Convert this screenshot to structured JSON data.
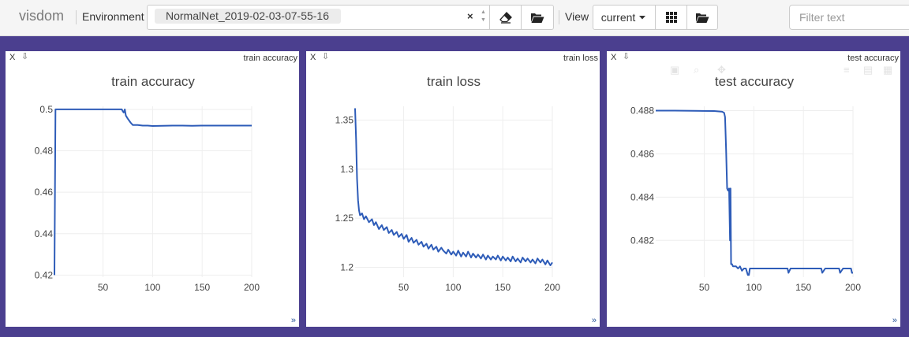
{
  "app": {
    "brand": "visdom"
  },
  "toolbar": {
    "environment_label": "Environment",
    "environment_value": "NormalNet_2019-02-03-07-55-16",
    "clear_glyph": "×",
    "view_label": "View",
    "view_value": "current",
    "filter_placeholder": "Filter text",
    "icons": [
      "eraser-icon",
      "folder-open-icon",
      "grid-icon",
      "folder-open-icon",
      "caret-down-icon"
    ]
  },
  "colors": {
    "background": "#4b3f8f",
    "line": "#2e5cb8",
    "grid": "#eeeeee"
  },
  "panes": [
    {
      "close": "X",
      "download": "⇩",
      "name": "train accuracy",
      "resize": "»"
    },
    {
      "close": "X",
      "download": "⇩",
      "name": "train loss",
      "resize": "»"
    },
    {
      "close": "X",
      "download": "⇩",
      "name": "test accuracy",
      "resize": "»"
    }
  ],
  "chart_data": [
    {
      "type": "line",
      "title": "train accuracy",
      "xlabel": "",
      "ylabel": "",
      "xlim": [
        1,
        200
      ],
      "ylim": [
        0.419,
        0.5015
      ],
      "xticks": [
        50,
        100,
        150,
        200
      ],
      "yticks": [
        0.42,
        0.44,
        0.46,
        0.48,
        0.5
      ],
      "ytick_labels": [
        "0.42",
        "0.44",
        "0.46",
        "0.48",
        "0.5"
      ],
      "grid": true,
      "series": [
        {
          "x": [
            1,
            2,
            3,
            10,
            40,
            60,
            69,
            70,
            71,
            72,
            73,
            75,
            78,
            80,
            85,
            90,
            95,
            100,
            110,
            120,
            130,
            140,
            150,
            160,
            170,
            180,
            190,
            200
          ],
          "y": [
            0.42,
            0.5,
            0.5,
            0.5,
            0.5,
            0.5,
            0.5,
            0.499,
            0.4985,
            0.5,
            0.497,
            0.4955,
            0.4935,
            0.4925,
            0.4925,
            0.4922,
            0.4922,
            0.492,
            0.4921,
            0.4922,
            0.4922,
            0.4921,
            0.4922,
            0.4922,
            0.4922,
            0.4922,
            0.4922,
            0.4922
          ]
        }
      ]
    },
    {
      "type": "line",
      "title": "train loss",
      "xlabel": "",
      "ylabel": "",
      "xlim": [
        1,
        200
      ],
      "ylim": [
        1.19,
        1.364
      ],
      "xticks": [
        50,
        100,
        150,
        200
      ],
      "yticks": [
        1.2,
        1.25,
        1.3,
        1.35
      ],
      "ytick_labels": [
        "1.2",
        "1.25",
        "1.3",
        "1.35"
      ],
      "grid": true,
      "series": [
        {
          "x": [
            1,
            2,
            3,
            4,
            5,
            6,
            8,
            10,
            12,
            15,
            18,
            20,
            22,
            25,
            28,
            30,
            33,
            35,
            38,
            40,
            43,
            45,
            48,
            50,
            53,
            55,
            58,
            60,
            63,
            65,
            68,
            70,
            73,
            75,
            78,
            80,
            83,
            85,
            88,
            90,
            93,
            95,
            98,
            100,
            103,
            105,
            108,
            110,
            113,
            115,
            118,
            120,
            123,
            125,
            128,
            130,
            133,
            135,
            138,
            140,
            143,
            145,
            148,
            150,
            153,
            155,
            158,
            160,
            163,
            165,
            168,
            170,
            173,
            175,
            178,
            180,
            183,
            185,
            188,
            190,
            193,
            195,
            198,
            200
          ],
          "y": [
            1.362,
            1.33,
            1.29,
            1.268,
            1.258,
            1.253,
            1.255,
            1.249,
            1.252,
            1.246,
            1.249,
            1.243,
            1.246,
            1.239,
            1.243,
            1.238,
            1.241,
            1.235,
            1.238,
            1.233,
            1.236,
            1.231,
            1.234,
            1.229,
            1.233,
            1.226,
            1.23,
            1.225,
            1.228,
            1.223,
            1.226,
            1.221,
            1.224,
            1.219,
            1.223,
            1.218,
            1.221,
            1.216,
            1.22,
            1.217,
            1.214,
            1.218,
            1.213,
            1.216,
            1.212,
            1.217,
            1.211,
            1.215,
            1.211,
            1.216,
            1.21,
            1.214,
            1.21,
            1.213,
            1.209,
            1.213,
            1.208,
            1.212,
            1.208,
            1.211,
            1.208,
            1.212,
            1.207,
            1.211,
            1.207,
            1.21,
            1.206,
            1.211,
            1.206,
            1.209,
            1.205,
            1.21,
            1.206,
            1.209,
            1.205,
            1.208,
            1.204,
            1.209,
            1.205,
            1.208,
            1.203,
            1.207,
            1.202,
            1.205
          ]
        }
      ]
    },
    {
      "type": "line",
      "title": "test accuracy",
      "xlabel": "",
      "ylabel": "",
      "xlim": [
        1,
        200
      ],
      "ylim": [
        0.4803,
        0.4882
      ],
      "xticks": [
        50,
        100,
        150,
        200
      ],
      "yticks": [
        0.482,
        0.484,
        0.486,
        0.488
      ],
      "ytick_labels": [
        "0.482",
        "0.484",
        "0.486",
        "0.488"
      ],
      "grid": true,
      "series": [
        {
          "x": [
            1,
            20,
            40,
            60,
            68,
            70,
            71,
            72,
            73,
            74,
            75,
            76,
            76.5,
            77,
            78,
            79,
            80,
            82,
            84,
            86,
            88,
            90,
            92,
            94,
            95,
            96,
            97,
            100,
            105,
            110,
            120,
            130,
            134,
            135,
            137,
            140,
            150,
            160,
            168,
            169,
            172,
            175,
            180,
            186,
            187,
            190,
            195,
            198,
            199,
            200
          ],
          "y": [
            0.488,
            0.488,
            0.48799,
            0.48798,
            0.48795,
            0.4879,
            0.4877,
            0.4862,
            0.4844,
            0.4843,
            0.4844,
            0.482,
            0.4844,
            0.4809,
            0.4809,
            0.4808,
            0.4808,
            0.4808,
            0.4807,
            0.4808,
            0.4806,
            0.4807,
            0.4807,
            0.4804,
            0.4804,
            0.4807,
            0.4807,
            0.4807,
            0.4807,
            0.4807,
            0.4807,
            0.4807,
            0.4807,
            0.4805,
            0.4807,
            0.4807,
            0.4807,
            0.4807,
            0.4807,
            0.4805,
            0.4807,
            0.4807,
            0.4807,
            0.4807,
            0.4805,
            0.4807,
            0.4807,
            0.4807,
            0.4805,
            0.4805
          ]
        }
      ]
    }
  ]
}
